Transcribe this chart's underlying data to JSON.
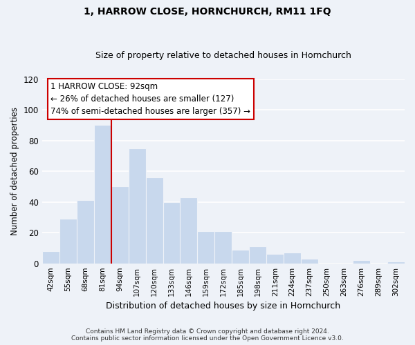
{
  "title": "1, HARROW CLOSE, HORNCHURCH, RM11 1FQ",
  "subtitle": "Size of property relative to detached houses in Hornchurch",
  "xlabel": "Distribution of detached houses by size in Hornchurch",
  "ylabel": "Number of detached properties",
  "bar_labels": [
    "42sqm",
    "55sqm",
    "68sqm",
    "81sqm",
    "94sqm",
    "107sqm",
    "120sqm",
    "133sqm",
    "146sqm",
    "159sqm",
    "172sqm",
    "185sqm",
    "198sqm",
    "211sqm",
    "224sqm",
    "237sqm",
    "250sqm",
    "263sqm",
    "276sqm",
    "289sqm",
    "302sqm"
  ],
  "bar_values": [
    8,
    29,
    41,
    90,
    50,
    75,
    56,
    40,
    43,
    21,
    21,
    9,
    11,
    6,
    7,
    3,
    0,
    0,
    2,
    0,
    1
  ],
  "bar_color": "#c8d8ed",
  "property_line_index": 4,
  "property_line_color": "#cc0000",
  "ylim": [
    0,
    120
  ],
  "yticks": [
    0,
    20,
    40,
    60,
    80,
    100,
    120
  ],
  "annotation_line1": "1 HARROW CLOSE: 92sqm",
  "annotation_line2": "← 26% of detached houses are smaller (127)",
  "annotation_line3": "74% of semi-detached houses are larger (357) →",
  "annotation_box_color": "white",
  "annotation_box_edge": "#cc0000",
  "footer_line1": "Contains HM Land Registry data © Crown copyright and database right 2024.",
  "footer_line2": "Contains public sector information licensed under the Open Government Licence v3.0.",
  "background_color": "#eef2f8",
  "grid_color": "white",
  "title_fontsize": 10,
  "subtitle_fontsize": 9
}
